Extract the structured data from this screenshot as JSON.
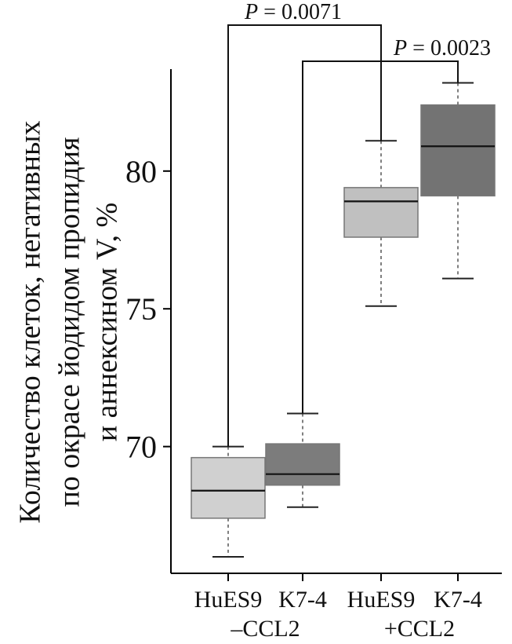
{
  "chart_data": {
    "type": "box",
    "ylabel_lines": [
      "Количество клеток, негативных",
      "по окрасе йодидом пропидия",
      "и аннексином V, %"
    ],
    "ylim": [
      65.4,
      83.7
    ],
    "yticks": [
      70,
      75,
      80
    ],
    "ytick_labels": [
      "70",
      "75",
      "80"
    ],
    "categories": [
      "HuES9",
      "K7-4",
      "HuES9",
      "K7-4"
    ],
    "group_labels": [
      "–CCL2",
      "+CCL2"
    ],
    "boxes": [
      {
        "category": "HuES9",
        "group": "–CCL2",
        "whisker_low": 66.0,
        "q1": 67.4,
        "median": 68.4,
        "q3": 69.6,
        "whisker_high": 70.0,
        "color": "#d0d0d0"
      },
      {
        "category": "K7-4",
        "group": "–CCL2",
        "whisker_low": 67.8,
        "q1": 68.6,
        "median": 69.0,
        "q3": 70.1,
        "whisker_high": 71.2,
        "color": "#7c7c7c"
      },
      {
        "category": "HuES9",
        "group": "+CCL2",
        "whisker_low": 75.1,
        "q1": 77.6,
        "median": 78.9,
        "q3": 79.4,
        "whisker_high": 81.1,
        "color": "#c0c0c0"
      },
      {
        "category": "K7-4",
        "group": "+CCL2",
        "whisker_low": 76.1,
        "q1": 79.1,
        "median": 80.9,
        "q3": 82.4,
        "whisker_high": 83.2,
        "color": "#737373"
      }
    ],
    "annotations": [
      {
        "prefix": "P",
        "text": " = 0.0071",
        "from_box": 0,
        "to_box": 2
      },
      {
        "prefix": "P",
        "text": " = 0.0023",
        "from_box": 1,
        "to_box": 3
      }
    ]
  }
}
